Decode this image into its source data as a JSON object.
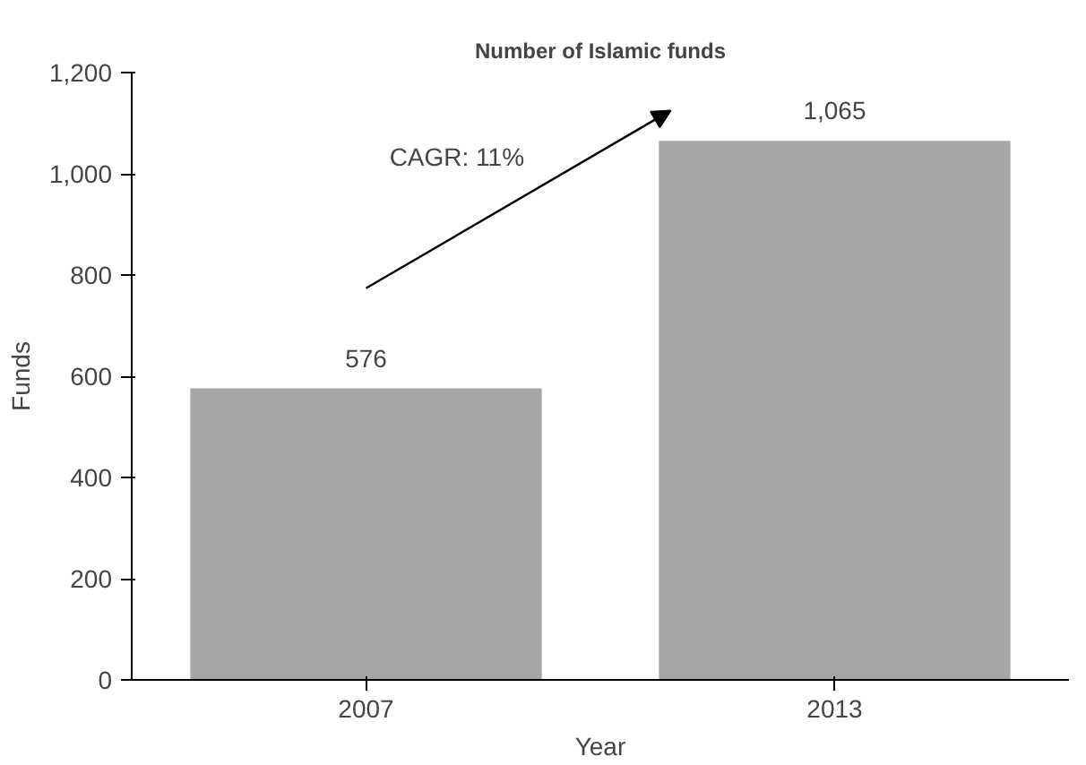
{
  "chart_data": {
    "type": "bar",
    "title": "Number of Islamic funds",
    "xlabel": "Year",
    "ylabel": "Funds",
    "categories": [
      "2007",
      "2013"
    ],
    "values": [
      576,
      1065
    ],
    "value_labels": [
      "576",
      "1,065"
    ],
    "color": "#a6a6a6",
    "ylim": [
      0,
      1200
    ],
    "yticks": [
      0,
      200,
      400,
      600,
      800,
      {
        "value": 1000,
        "label": "1,000"
      },
      {
        "value": 1200,
        "label": "1,200"
      }
    ],
    "annotations": [
      "CAGR: 11%"
    ],
    "grid": false
  }
}
